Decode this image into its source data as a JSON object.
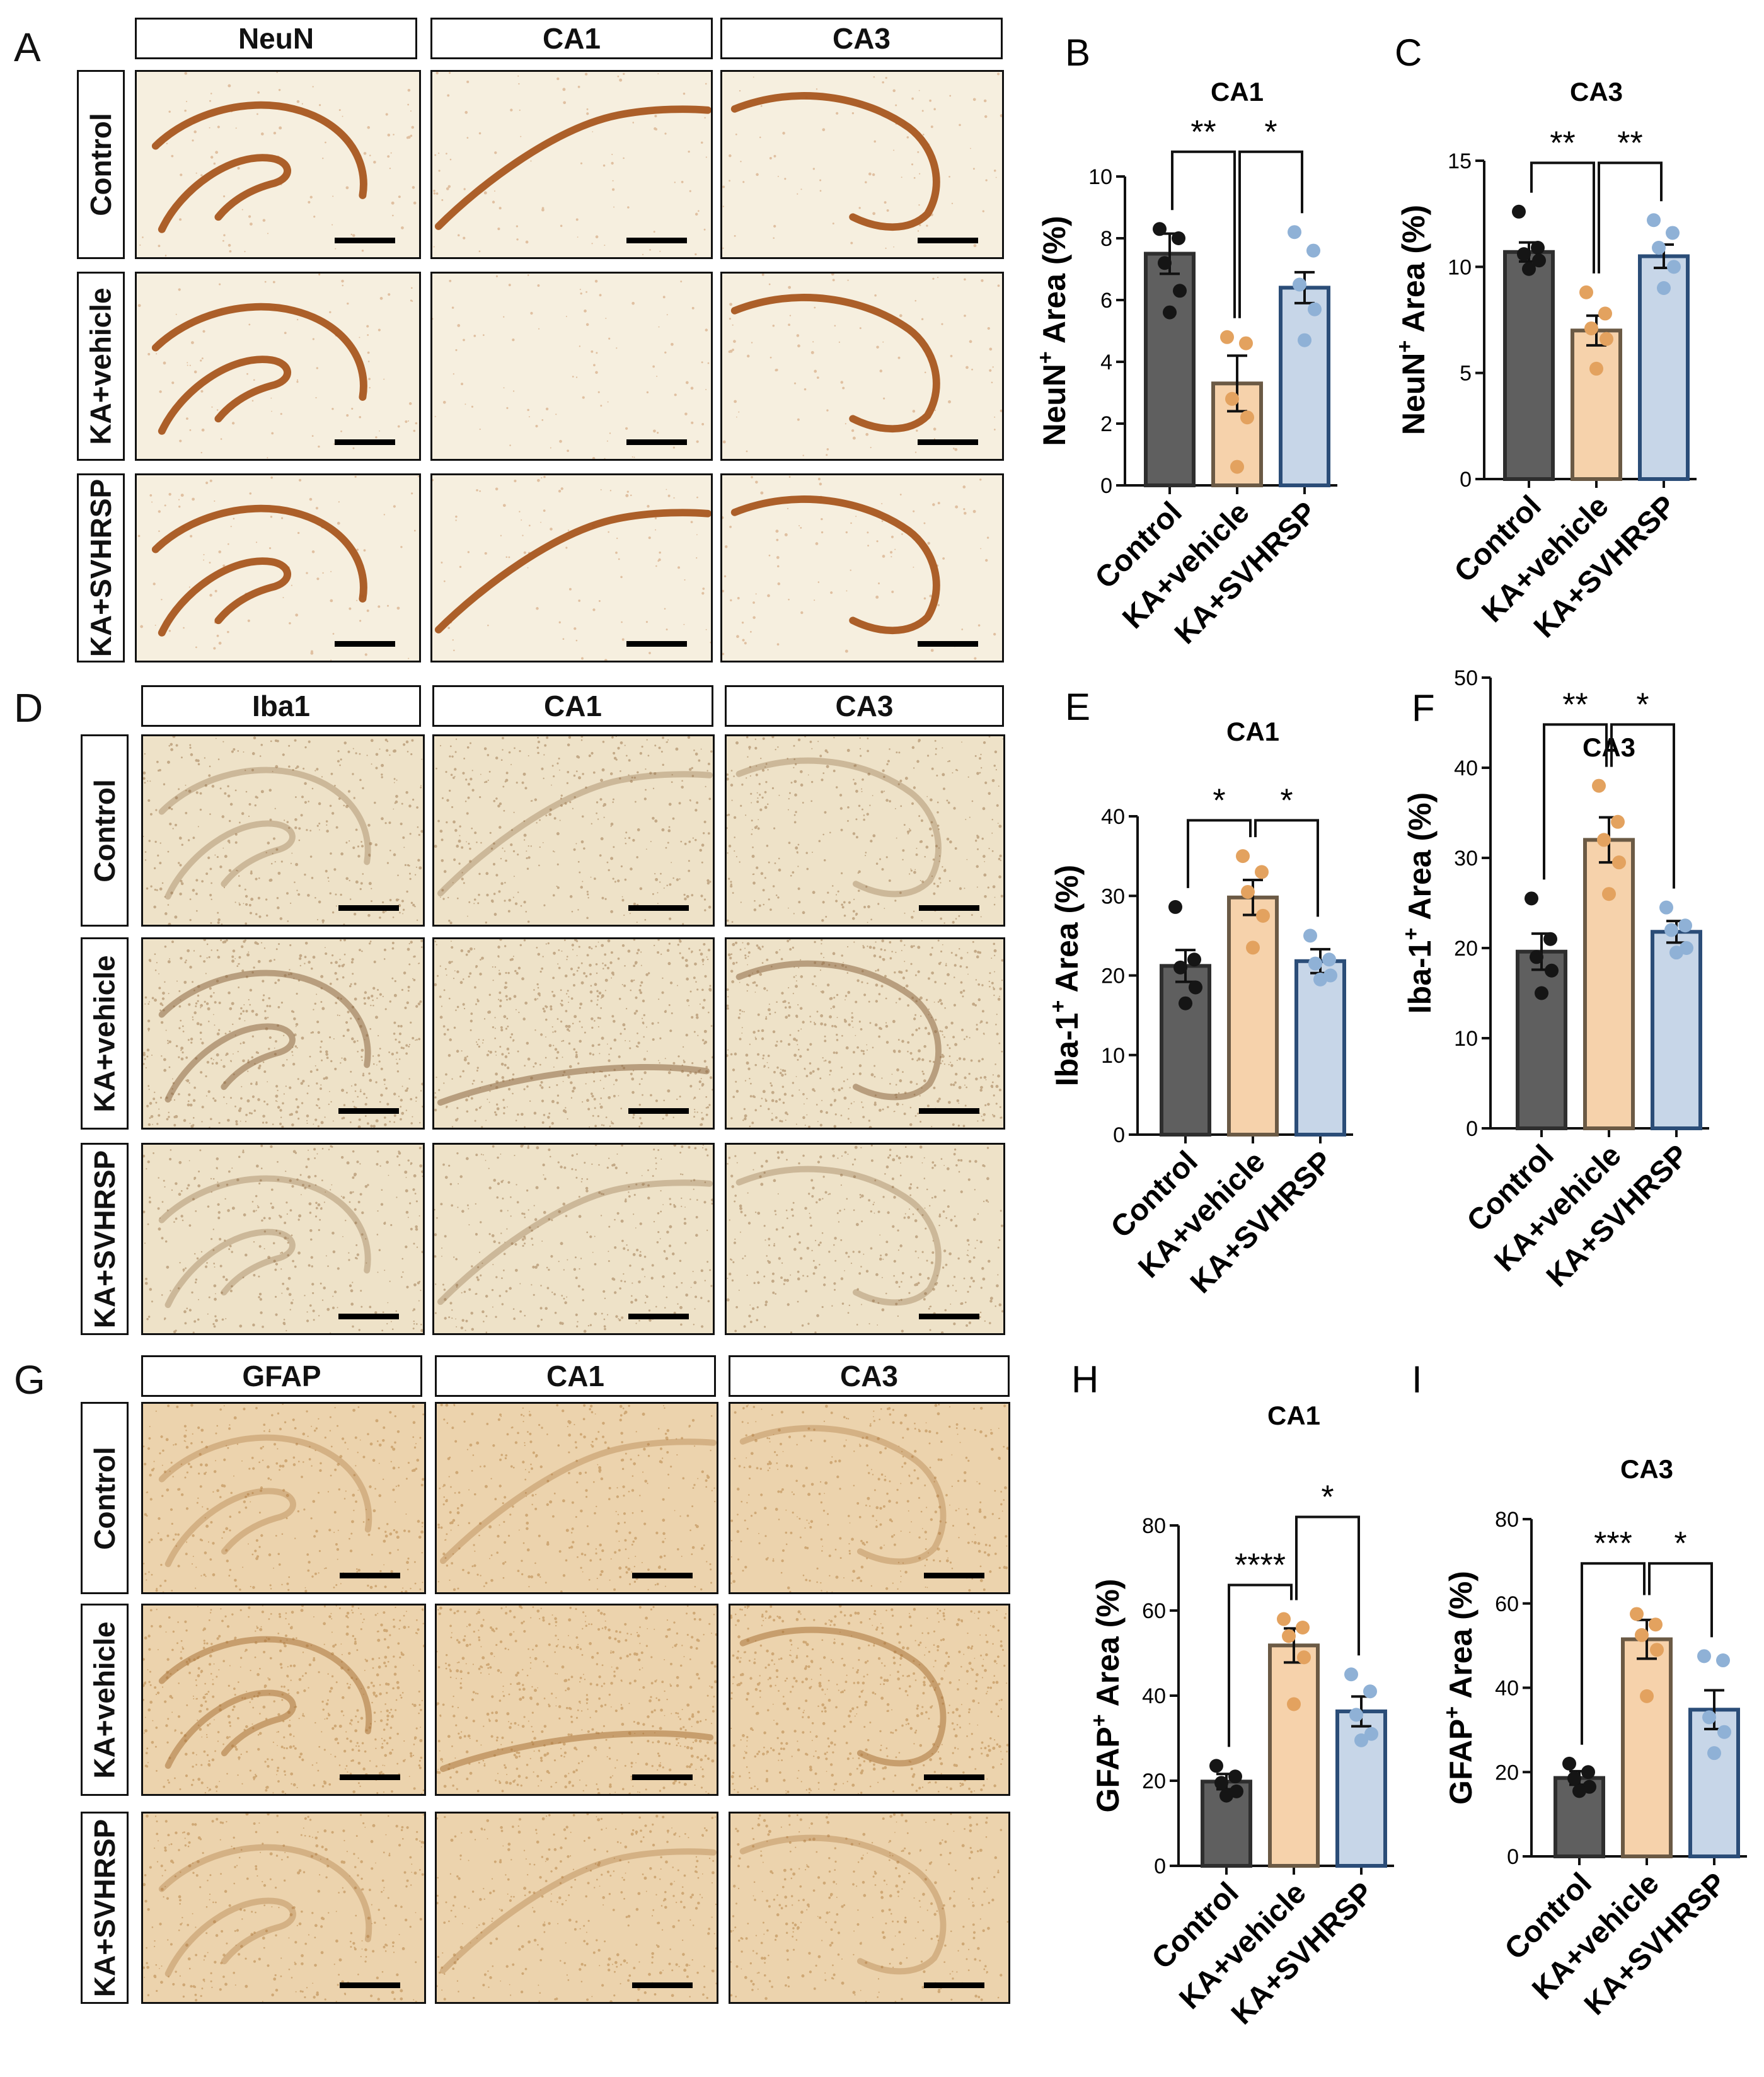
{
  "panels": {
    "A": "A",
    "B": "B",
    "C": "C",
    "D": "D",
    "E": "E",
    "F": "F",
    "G": "G",
    "H": "H",
    "I": "I"
  },
  "groups": [
    "Control",
    "KA+vehicle",
    "KA+SVHRSP"
  ],
  "image_blocks": [
    {
      "letter": "A",
      "stain": "NeuN",
      "region1": "CA1",
      "region2": "CA3",
      "tone": "neun"
    },
    {
      "letter": "D",
      "stain": "Iba1",
      "region1": "CA1",
      "region2": "CA3",
      "tone": "iba"
    },
    {
      "letter": "G",
      "stain": "GFAP",
      "region1": "CA1",
      "region2": "CA3",
      "tone": "gfap"
    }
  ],
  "colors": {
    "control": "#5f5f5f",
    "vehicle": "#f6d2ab",
    "vehicle_edge": "#6b5a45",
    "vehicle_dot": "#e3a25f",
    "svhrsp": "#c7d6e8",
    "svhrsp_edge": "#2b4d78",
    "svhrsp_dot": "#8fb1d6"
  },
  "chart_data": [
    {
      "panel": "B",
      "type": "bar",
      "title": "CA1",
      "ylabel_main": "NeuN",
      "ylabel_sup": "+",
      "ylabel_rest": "  Area (%)",
      "categories": [
        "Control",
        "KA+vehicle",
        "KA+SVHRSP"
      ],
      "values": [
        7.5,
        3.3,
        6.4
      ],
      "errors": [
        0.65,
        0.9,
        0.5
      ],
      "points": [
        [
          8.3,
          8.0,
          7.2,
          6.3,
          5.6
        ],
        [
          4.8,
          4.6,
          2.8,
          2.2,
          0.6
        ],
        [
          8.2,
          7.6,
          6.5,
          5.7,
          4.7
        ]
      ],
      "ylim": [
        0,
        10
      ],
      "yticks": [
        0,
        2,
        4,
        6,
        8,
        10
      ],
      "sig": [
        {
          "from": 0,
          "to": 1,
          "label": "**",
          "level": 10.8
        },
        {
          "from": 1,
          "to": 2,
          "label": "*",
          "level": 10.8
        }
      ]
    },
    {
      "panel": "C",
      "type": "bar",
      "title": "CA3",
      "ylabel_main": "NeuN",
      "ylabel_sup": "+",
      "ylabel_rest": "  Area (%)",
      "categories": [
        "Control",
        "KA+vehicle",
        "KA+SVHRSP"
      ],
      "values": [
        10.7,
        7.0,
        10.5
      ],
      "errors": [
        0.45,
        0.7,
        0.55
      ],
      "points": [
        [
          12.6,
          10.9,
          10.6,
          10.3,
          9.9
        ],
        [
          8.8,
          7.8,
          7.1,
          6.6,
          5.2
        ],
        [
          12.2,
          11.6,
          10.9,
          10.0,
          9.0
        ]
      ],
      "ylim": [
        0,
        15
      ],
      "yticks": [
        0,
        5,
        10,
        15
      ],
      "sig": [
        {
          "from": 0,
          "to": 1,
          "label": "**",
          "level": 14.9
        },
        {
          "from": 1,
          "to": 2,
          "label": "**",
          "level": 14.9
        }
      ]
    },
    {
      "panel": "E",
      "type": "bar",
      "title": "CA1",
      "ylabel_main": "Iba-1",
      "ylabel_sup": "+",
      "ylabel_rest": "  Area (%)",
      "categories": [
        "Control",
        "KA+vehicle",
        "KA+SVHRSP"
      ],
      "values": [
        21.2,
        29.8,
        21.8
      ],
      "errors": [
        2.0,
        2.2,
        1.5
      ],
      "points": [
        [
          28.6,
          22.0,
          21.0,
          18.5,
          16.5
        ],
        [
          35.0,
          33.0,
          30.5,
          27.5,
          23.5
        ],
        [
          25.0,
          22.0,
          21.5,
          20.0,
          19.5
        ]
      ],
      "ylim": [
        0,
        40
      ],
      "yticks": [
        0,
        10,
        20,
        30,
        40
      ],
      "sig": [
        {
          "from": 0,
          "to": 1,
          "label": "*",
          "level": 39.5
        },
        {
          "from": 1,
          "to": 2,
          "label": "*",
          "level": 39.5
        }
      ]
    },
    {
      "panel": "F",
      "type": "bar",
      "title": "CA3",
      "ylabel_main": "Iba-1",
      "ylabel_sup": "+",
      "ylabel_rest": "  Area (%)",
      "categories": [
        "Control",
        "KA+vehicle",
        "KA+SVHRSP"
      ],
      "values": [
        19.6,
        32.0,
        21.8
      ],
      "errors": [
        2.0,
        2.5,
        1.2
      ],
      "points": [
        [
          25.5,
          21.0,
          19.0,
          17.5,
          15.0
        ],
        [
          38.0,
          34.0,
          32.0,
          29.5,
          26.0
        ],
        [
          24.5,
          22.5,
          22.0,
          20.0,
          19.5
        ]
      ],
      "ylim": [
        0,
        50
      ],
      "yticks": [
        0,
        10,
        20,
        30,
        40,
        50
      ],
      "sig": [
        {
          "from": 0,
          "to": 1,
          "label": "**",
          "level": 44.8
        },
        {
          "from": 1,
          "to": 2,
          "label": "*",
          "level": 44.8
        }
      ]
    },
    {
      "panel": "H",
      "type": "bar",
      "title": "CA1",
      "ylabel_main": "GFAP",
      "ylabel_sup": "+",
      "ylabel_rest": " Area (%)",
      "categories": [
        "Control",
        "KA+vehicle",
        "KA+SVHRSP"
      ],
      "values": [
        19.8,
        51.8,
        36.3
      ],
      "errors": [
        1.8,
        4.0,
        3.5
      ],
      "points": [
        [
          23.5,
          21.0,
          19.5,
          17.5,
          16.5
        ],
        [
          58.0,
          56.0,
          54.0,
          49.0,
          38.0
        ],
        [
          45.0,
          41.0,
          35.5,
          31.0,
          29.5
        ]
      ],
      "ylim": [
        0,
        80
      ],
      "yticks": [
        0,
        20,
        40,
        60,
        80
      ],
      "sig": [
        {
          "from": 0,
          "to": 1,
          "label": "****",
          "level": 66.0
        },
        {
          "from": 1,
          "to": 2,
          "label": "*",
          "level": 82.0
        }
      ]
    },
    {
      "panel": "I",
      "type": "bar",
      "title": "CA3",
      "ylabel_main": "GFAP",
      "ylabel_sup": "+",
      "ylabel_rest": " Area (%)",
      "categories": [
        "Control",
        "KA+vehicle",
        "KA+SVHRSP"
      ],
      "values": [
        18.6,
        51.5,
        34.8
      ],
      "errors": [
        1.6,
        4.6,
        4.6
      ],
      "points": [
        [
          22.0,
          20.0,
          18.5,
          16.5,
          15.5
        ],
        [
          57.5,
          55.0,
          52.5,
          49.0,
          38.0
        ],
        [
          47.5,
          46.5,
          33.0,
          29.5,
          24.5
        ]
      ],
      "ylim": [
        0,
        80
      ],
      "yticks": [
        0,
        20,
        40,
        60,
        80
      ],
      "sig": [
        {
          "from": 0,
          "to": 1,
          "label": "***",
          "level": 69.5
        },
        {
          "from": 1,
          "to": 2,
          "label": "*",
          "level": 69.5
        }
      ]
    }
  ]
}
